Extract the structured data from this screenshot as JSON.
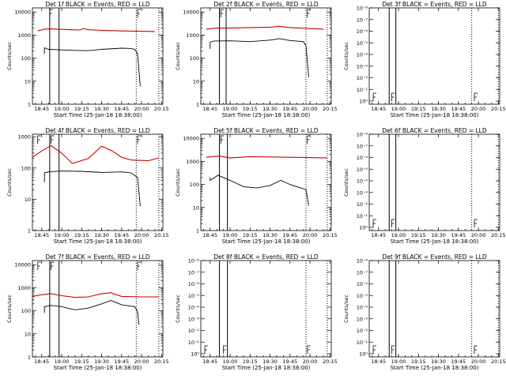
{
  "chart_data": [
    {
      "type": "line",
      "title": "Det 1f BLACK = Events, RED = LLD",
      "xlabel": "Start Time (25-Jan-18 18:38:00)",
      "ylabel": "Counts/sec",
      "xlim": [
        "18:38",
        "20:16"
      ],
      "y_scale": "log",
      "ylim": [
        1,
        15000
      ],
      "xticks": [
        "18:45",
        "19:00",
        "19:15",
        "19:30",
        "19:45",
        "20:00",
        "20:15"
      ],
      "yticks": [
        "1",
        "10",
        "100",
        "1000",
        "10000"
      ],
      "solid_vlines": [
        "18:51",
        "18:58"
      ],
      "dotted_vlines": [
        "19:56",
        "20:13"
      ],
      "markers": [
        {
          "x": "18:51",
          "y": "top"
        },
        {
          "x": "19:57",
          "y": "top"
        }
      ],
      "series": [
        {
          "color": "#000000",
          "x": [
            "18:47",
            "18:47",
            "18:50",
            "19:05",
            "19:20",
            "19:30",
            "19:45",
            "19:52",
            "19:55",
            "19:57",
            "19:59"
          ],
          "y": [
            150,
            280,
            240,
            220,
            210,
            240,
            270,
            260,
            240,
            150,
            6
          ]
        },
        {
          "color": "#cc0000",
          "x": [
            "18:42",
            "18:47",
            "18:52",
            "19:05",
            "19:14",
            "19:16",
            "19:20",
            "19:30",
            "19:45",
            "20:00",
            "20:10"
          ],
          "y": [
            1500,
            1800,
            1850,
            1700,
            1650,
            1900,
            1700,
            1600,
            1500,
            1450,
            1420
          ]
        }
      ]
    },
    {
      "type": "line",
      "title": "Det 2f BLACK = Events, RED = LLD",
      "xlabel": "Start Time (25-Jan-18 18:38:00)",
      "ylabel": "Counts/sec",
      "xlim": [
        "18:38",
        "20:16"
      ],
      "y_scale": "log",
      "ylim": [
        1,
        15000
      ],
      "xticks": [
        "18:45",
        "19:00",
        "19:15",
        "19:30",
        "19:45",
        "20:00",
        "20:15"
      ],
      "yticks": [
        "1",
        "10",
        "100",
        "1000",
        "10000"
      ],
      "solid_vlines": [
        "18:52",
        "18:57"
      ],
      "dotted_vlines": [
        "19:57",
        "20:13"
      ],
      "markers": [
        {
          "x": "18:53",
          "y": "top"
        },
        {
          "x": "19:58",
          "y": "top"
        }
      ],
      "series": [
        {
          "color": "#000000",
          "x": [
            "18:45",
            "18:45",
            "18:48",
            "19:00",
            "19:15",
            "19:30",
            "19:37",
            "19:45",
            "19:55",
            "19:57",
            "19:59"
          ],
          "y": [
            250,
            500,
            550,
            560,
            520,
            600,
            700,
            580,
            520,
            350,
            15
          ]
        },
        {
          "color": "#cc0000",
          "x": [
            "18:42",
            "18:50",
            "19:00",
            "19:15",
            "19:30",
            "19:37",
            "19:45",
            "20:00",
            "20:10"
          ],
          "y": [
            1800,
            2000,
            2000,
            2100,
            2200,
            2400,
            2100,
            1900,
            1800
          ]
        }
      ]
    },
    {
      "type": "line",
      "title": "Det 3f BLACK = Events, RED = LLD",
      "xlabel": "Start Time (25-Jan-18 18:38:00)",
      "ylabel": "Counts/sec",
      "xlim": [
        "18:38",
        "20:16"
      ],
      "y_scale": "log",
      "ylim": [
        0.8,
        1.3
      ],
      "xticks": [
        "18:45",
        "19:00",
        "19:15",
        "19:30",
        "19:45",
        "20:00",
        "20:15"
      ],
      "yticks": [
        "10⁰",
        "10⁻¹",
        "10⁻²",
        "10⁻³",
        "10⁻⁴",
        "10⁻⁵",
        "10⁻⁶",
        "10⁻⁷",
        "10⁻⁸"
      ],
      "solid_vlines": [
        "18:53",
        "18:58"
      ],
      "dotted_vlines": [
        "19:55",
        "20:15"
      ],
      "markers": [
        {
          "x": "18:41",
          "y": "bottom"
        },
        {
          "x": "18:55",
          "y": "bottom"
        },
        {
          "x": "19:57",
          "y": "bottom"
        }
      ],
      "series": []
    },
    {
      "type": "line",
      "title": "Det 4f BLACK = Events, RED = LLD",
      "xlabel": "Start Time (25-Jan-18 18:38:00)",
      "ylabel": "Counts/sec",
      "xlim": [
        "18:38",
        "20:16"
      ],
      "y_scale": "log",
      "ylim": [
        1,
        1200
      ],
      "xticks": [
        "18:45",
        "19:00",
        "19:15",
        "19:30",
        "19:45",
        "20:00",
        "20:15"
      ],
      "yticks": [
        "1",
        "10",
        "100",
        "1000"
      ],
      "solid_vlines": [
        "18:51",
        "18:58"
      ],
      "dotted_vlines": [
        "19:56",
        "20:13"
      ],
      "markers": [
        {
          "x": "18:42",
          "y": "top"
        },
        {
          "x": "18:52",
          "y": "top"
        },
        {
          "x": "19:57",
          "y": "top"
        }
      ],
      "series": [
        {
          "color": "#000000",
          "x": [
            "18:47",
            "18:47",
            "18:50",
            "19:00",
            "19:15",
            "19:30",
            "19:45",
            "19:52",
            "19:57",
            "19:59"
          ],
          "y": [
            35,
            70,
            75,
            80,
            78,
            72,
            75,
            70,
            50,
            6
          ]
        },
        {
          "color": "#cc0000",
          "x": [
            "18:38",
            "18:45",
            "18:52",
            "19:00",
            "19:08",
            "19:20",
            "19:30",
            "19:38",
            "19:45",
            "19:52",
            "20:05",
            "20:13"
          ],
          "y": [
            220,
            350,
            520,
            300,
            140,
            200,
            500,
            350,
            220,
            180,
            170,
            210
          ]
        }
      ]
    },
    {
      "type": "line",
      "title": "Det 5f BLACK = Events, RED = LLD",
      "xlabel": "Start Time (25-Jan-18 18:38:00)",
      "ylabel": "Counts/sec",
      "xlim": [
        "18:38",
        "20:16"
      ],
      "y_scale": "log",
      "ylim": [
        1,
        15000
      ],
      "xticks": [
        "18:45",
        "19:00",
        "19:15",
        "19:30",
        "19:45",
        "20:00",
        "20:15"
      ],
      "yticks": [
        "1",
        "10",
        "100",
        "1000",
        "10000"
      ],
      "solid_vlines": [
        "18:52",
        "18:58"
      ],
      "dotted_vlines": [
        "19:57",
        "20:13"
      ],
      "markers": [
        {
          "x": "18:53",
          "y": "top"
        },
        {
          "x": "19:58",
          "y": "top"
        }
      ],
      "series": [
        {
          "color": "#000000",
          "x": [
            "18:45",
            "18:45",
            "18:51",
            "19:00",
            "19:10",
            "19:20",
            "19:30",
            "19:38",
            "19:45",
            "19:57",
            "19:59"
          ],
          "y": [
            200,
            150,
            250,
            150,
            80,
            70,
            90,
            150,
            100,
            60,
            12
          ]
        },
        {
          "color": "#cc0000",
          "x": [
            "18:42",
            "18:52",
            "19:00",
            "19:15",
            "19:30",
            "19:45",
            "20:00",
            "20:13"
          ],
          "y": [
            1500,
            1700,
            1400,
            1600,
            1550,
            1500,
            1450,
            1400
          ]
        }
      ]
    },
    {
      "type": "line",
      "title": "Det 6f BLACK = Events, RED = LLD",
      "xlabel": "Start Time (25-Jan-18 18:38:00)",
      "ylabel": "Counts/sec",
      "xlim": [
        "18:38",
        "20:16"
      ],
      "y_scale": "log",
      "ylim": [
        0.8,
        1.3
      ],
      "xticks": [
        "18:45",
        "19:00",
        "19:15",
        "19:30",
        "19:45",
        "20:00",
        "20:15"
      ],
      "yticks": [
        "10⁰",
        "10⁻¹",
        "10⁻²",
        "10⁻³",
        "10⁻⁴",
        "10⁻⁵",
        "10⁻⁶",
        "10⁻⁷",
        "10⁻⁸"
      ],
      "solid_vlines": [
        "18:53",
        "18:58"
      ],
      "dotted_vlines": [
        "19:55",
        "20:15"
      ],
      "markers": [
        {
          "x": "18:41",
          "y": "bottom"
        },
        {
          "x": "18:55",
          "y": "bottom"
        },
        {
          "x": "19:57",
          "y": "bottom"
        }
      ],
      "series": []
    },
    {
      "type": "line",
      "title": "Det 7f BLACK = Events, RED = LLD",
      "xlabel": "Start Time (25-Jan-18 18:38:00)",
      "ylabel": "Counts/sec",
      "xlim": [
        "18:38",
        "20:16"
      ],
      "y_scale": "log",
      "ylim": [
        1,
        15000
      ],
      "xticks": [
        "18:45",
        "19:00",
        "19:15",
        "19:30",
        "19:45",
        "20:00",
        "20:15"
      ],
      "yticks": [
        "1",
        "10",
        "100",
        "1000",
        "10000"
      ],
      "solid_vlines": [
        "18:51",
        "18:58"
      ],
      "dotted_vlines": [
        "19:56",
        "20:13"
      ],
      "markers": [
        {
          "x": "18:42",
          "y": "top"
        },
        {
          "x": "18:52",
          "y": "top"
        },
        {
          "x": "19:57",
          "y": "top"
        }
      ],
      "series": [
        {
          "color": "#000000",
          "x": [
            "18:47",
            "18:47",
            "18:52",
            "19:00",
            "19:10",
            "19:20",
            "19:30",
            "19:37",
            "19:45",
            "19:55",
            "19:57",
            "19:58"
          ],
          "y": [
            80,
            150,
            170,
            150,
            110,
            130,
            200,
            280,
            180,
            150,
            90,
            25
          ]
        },
        {
          "color": "#cc0000",
          "x": [
            "18:38",
            "18:45",
            "18:52",
            "19:00",
            "19:10",
            "19:20",
            "19:30",
            "19:37",
            "19:45",
            "20:00",
            "20:13"
          ],
          "y": [
            420,
            500,
            550,
            450,
            380,
            400,
            550,
            600,
            420,
            400,
            400
          ]
        }
      ]
    },
    {
      "type": "line",
      "title": "Det 8f BLACK = Events, RED = LLD",
      "xlabel": "Start Time (25-Jan-18 18:38:00)",
      "ylabel": "Counts/sec",
      "xlim": [
        "18:38",
        "20:16"
      ],
      "y_scale": "log",
      "ylim": [
        0.8,
        1.3
      ],
      "xticks": [
        "18:45",
        "19:00",
        "19:15",
        "19:30",
        "19:45",
        "20:00",
        "20:15"
      ],
      "yticks": [
        "10⁰",
        "10⁻¹",
        "10⁻²",
        "10⁻³",
        "10⁻⁴",
        "10⁻⁵",
        "10⁻⁶",
        "10⁻⁷",
        "10⁻⁸"
      ],
      "solid_vlines": [
        "18:52",
        "18:58"
      ],
      "dotted_vlines": [
        "19:57",
        "20:13"
      ],
      "markers": [
        {
          "x": "18:41",
          "y": "bottom"
        },
        {
          "x": "18:55",
          "y": "bottom"
        },
        {
          "x": "19:58",
          "y": "bottom"
        }
      ],
      "series": []
    },
    {
      "type": "line",
      "title": "Det 9f BLACK = Events, RED = LLD",
      "xlabel": "Start Time (25-Jan-18 18:38:00)",
      "ylabel": "Counts/sec",
      "xlim": [
        "18:38",
        "20:16"
      ],
      "y_scale": "log",
      "ylim": [
        0.8,
        1.3
      ],
      "xticks": [
        "18:45",
        "19:00",
        "19:15",
        "19:30",
        "19:45",
        "20:00",
        "20:15"
      ],
      "yticks": [
        "10⁰",
        "10⁻¹",
        "10⁻²",
        "10⁻³",
        "10⁻⁴",
        "10⁻⁵",
        "10⁻⁶",
        "10⁻⁷",
        "10⁻⁸"
      ],
      "solid_vlines": [
        "18:53",
        "18:58"
      ],
      "dotted_vlines": [
        "19:55",
        "20:15"
      ],
      "markers": [
        {
          "x": "18:41",
          "y": "bottom"
        },
        {
          "x": "18:55",
          "y": "bottom"
        },
        {
          "x": "19:57",
          "y": "bottom"
        }
      ],
      "series": []
    }
  ]
}
